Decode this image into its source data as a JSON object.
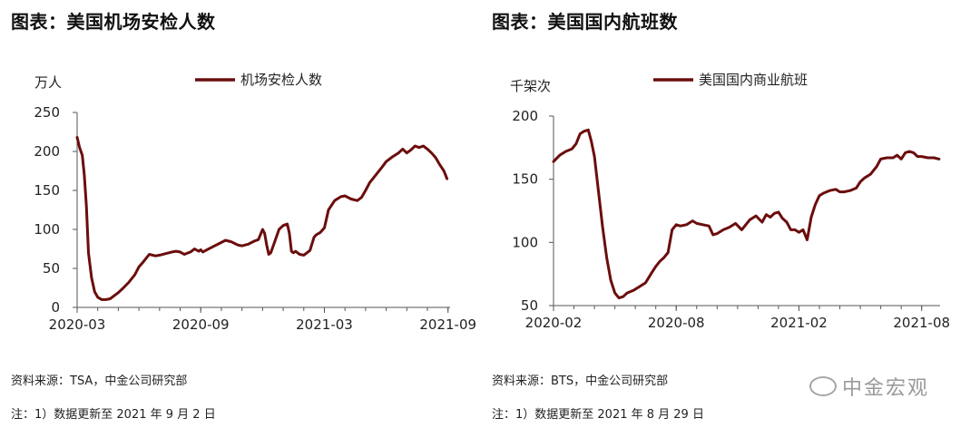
{
  "panels": [
    {
      "title": "图表：美国机场安检人数",
      "source": "资料来源：TSA，中金公司研究部",
      "note": "注：1）数据更新至 2021 年 9 月 2 日"
    },
    {
      "title": "图表：美国国内航班数",
      "source": "资料来源：BTS，中金公司研究部",
      "note": "注：1）数据更新至 2021 年 8 月 29 日"
    }
  ],
  "watermark": "中金宏观",
  "chart_data": [
    {
      "type": "line",
      "ylabel": "万人",
      "ylim": [
        0,
        250
      ],
      "yticks": [
        0,
        50,
        100,
        150,
        200,
        250
      ],
      "xlim": [
        0,
        18.1
      ],
      "xticks": [
        {
          "v": 0,
          "label": "2020-03"
        },
        {
          "v": 6,
          "label": "2020-09"
        },
        {
          "v": 12,
          "label": "2021-03"
        },
        {
          "v": 18,
          "label": "2021-09"
        }
      ],
      "legend_position": "top-center",
      "color": "#6b0d0d",
      "series": [
        {
          "name": "机场安检人数",
          "x": [
            0,
            0.12,
            0.25,
            0.35,
            0.45,
            0.55,
            0.7,
            0.85,
            1.0,
            1.2,
            1.4,
            1.6,
            1.8,
            2.0,
            2.2,
            2.5,
            2.8,
            3.0,
            3.2,
            3.5,
            3.8,
            4.0,
            4.3,
            4.6,
            4.8,
            5.0,
            5.2,
            5.5,
            5.7,
            5.9,
            6.0,
            6.1,
            6.3,
            6.6,
            6.9,
            7.2,
            7.5,
            7.8,
            8.0,
            8.3,
            8.6,
            8.8,
            9.0,
            9.1,
            9.2,
            9.3,
            9.4,
            9.6,
            9.8,
            10.0,
            10.2,
            10.3,
            10.4,
            10.5,
            10.6,
            10.8,
            11.0,
            11.3,
            11.5,
            11.6,
            11.8,
            12.0,
            12.2,
            12.5,
            12.8,
            13.0,
            13.3,
            13.6,
            13.8,
            14.0,
            14.2,
            14.5,
            14.8,
            15.0,
            15.3,
            15.6,
            15.8,
            16.0,
            16.2,
            16.4,
            16.6,
            16.8,
            17.0,
            17.2,
            17.4,
            17.6,
            17.8,
            17.95
          ],
          "values": [
            218,
            205,
            195,
            170,
            130,
            70,
            38,
            20,
            13,
            10,
            10,
            11,
            15,
            19,
            24,
            32,
            42,
            52,
            58,
            68,
            66,
            67,
            69,
            71,
            72,
            71,
            68,
            71,
            75,
            72,
            74,
            71,
            74,
            78,
            82,
            86,
            84,
            80,
            79,
            81,
            85,
            87,
            100,
            95,
            80,
            68,
            70,
            85,
            100,
            105,
            107,
            95,
            72,
            70,
            72,
            68,
            67,
            73,
            90,
            93,
            96,
            102,
            125,
            137,
            142,
            143,
            139,
            137,
            141,
            150,
            160,
            170,
            180,
            187,
            193,
            198,
            203,
            198,
            202,
            207,
            205,
            207,
            203,
            198,
            192,
            183,
            175,
            165
          ]
        }
      ]
    },
    {
      "type": "line",
      "ylabel": "千架次",
      "ylim": [
        50,
        200
      ],
      "yticks": [
        50,
        100,
        150,
        200
      ],
      "xlim": [
        0,
        18.9
      ],
      "xticks": [
        {
          "v": 0,
          "label": "2020-02"
        },
        {
          "v": 6,
          "label": "2020-08"
        },
        {
          "v": 12,
          "label": "2021-02"
        },
        {
          "v": 18,
          "label": "2021-08"
        }
      ],
      "legend_position": "top-center",
      "color": "#6b0d0d",
      "series": [
        {
          "name": "美国国内商业航班",
          "x": [
            0,
            0.3,
            0.6,
            0.9,
            1.1,
            1.3,
            1.5,
            1.7,
            1.85,
            2.0,
            2.2,
            2.4,
            2.6,
            2.8,
            3.0,
            3.2,
            3.4,
            3.6,
            3.9,
            4.2,
            4.5,
            4.8,
            5.0,
            5.2,
            5.4,
            5.6,
            5.8,
            6.0,
            6.2,
            6.5,
            6.8,
            7.0,
            7.3,
            7.6,
            7.8,
            8.0,
            8.3,
            8.6,
            8.9,
            9.2,
            9.4,
            9.6,
            9.9,
            10.2,
            10.4,
            10.6,
            10.8,
            11.0,
            11.2,
            11.4,
            11.6,
            11.8,
            12.0,
            12.2,
            12.4,
            12.6,
            12.8,
            13.0,
            13.2,
            13.5,
            13.8,
            14.0,
            14.2,
            14.5,
            14.8,
            15.0,
            15.2,
            15.5,
            15.8,
            16.0,
            16.3,
            16.6,
            16.8,
            17.0,
            17.2,
            17.4,
            17.6,
            17.8,
            18.0,
            18.3,
            18.6,
            18.85
          ],
          "values": [
            164,
            169,
            172,
            174,
            178,
            186,
            188,
            189,
            180,
            168,
            140,
            112,
            88,
            70,
            60,
            56,
            57,
            60,
            62,
            65,
            68,
            76,
            81,
            85,
            88,
            92,
            110,
            114,
            113,
            114,
            117,
            115,
            114,
            113,
            106,
            107,
            110,
            112,
            115,
            110,
            114,
            118,
            121,
            116,
            122,
            120,
            123,
            124,
            119,
            116,
            110,
            110,
            108,
            110,
            102,
            120,
            130,
            137,
            139,
            141,
            142,
            140,
            140,
            141,
            143,
            148,
            151,
            154,
            160,
            166,
            167,
            167,
            169,
            166,
            171,
            172,
            171,
            168,
            168,
            167,
            167,
            166
          ]
        }
      ]
    }
  ]
}
